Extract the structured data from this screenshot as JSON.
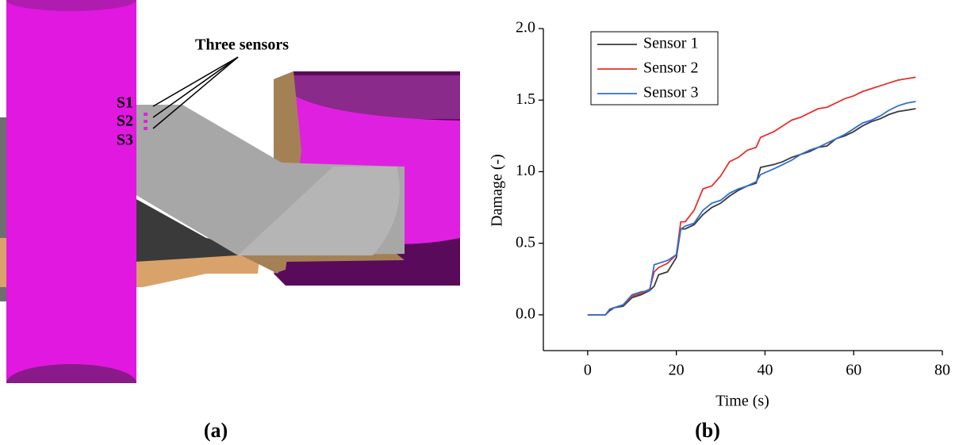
{
  "panel_a": {
    "annotation": "Three sensors",
    "sensor_labels": [
      "S1",
      "S2",
      "S3"
    ],
    "caption": "(a)"
  },
  "chart_data": {
    "type": "line",
    "caption": "(b)",
    "x_label": "Time (s)",
    "y_label": "Damage (-)",
    "x": [
      0,
      4,
      5,
      6,
      8,
      10,
      12,
      14,
      15,
      16,
      18,
      20,
      21,
      22,
      24,
      26,
      28,
      30,
      32,
      34,
      36,
      38,
      39,
      42,
      44,
      46,
      48,
      50,
      52,
      54,
      56,
      58,
      60,
      62,
      64,
      66,
      68,
      70,
      72,
      74
    ],
    "series": [
      {
        "name": "Sensor 1",
        "color": "#3a3a3a",
        "values": [
          0,
          0,
          0.03,
          0.05,
          0.06,
          0.12,
          0.14,
          0.17,
          0.2,
          0.28,
          0.3,
          0.4,
          0.6,
          0.6,
          0.63,
          0.7,
          0.75,
          0.78,
          0.83,
          0.87,
          0.9,
          0.92,
          1.03,
          1.05,
          1.07,
          1.1,
          1.12,
          1.14,
          1.17,
          1.18,
          1.23,
          1.25,
          1.28,
          1.32,
          1.35,
          1.37,
          1.4,
          1.42,
          1.43,
          1.44
        ]
      },
      {
        "name": "Sensor 2",
        "color": "#e8302c",
        "values": [
          0,
          0,
          0.04,
          0.05,
          0.07,
          0.13,
          0.15,
          0.18,
          0.3,
          0.33,
          0.36,
          0.42,
          0.65,
          0.65,
          0.73,
          0.88,
          0.9,
          0.97,
          1.07,
          1.1,
          1.15,
          1.17,
          1.24,
          1.28,
          1.32,
          1.36,
          1.38,
          1.41,
          1.44,
          1.45,
          1.48,
          1.51,
          1.53,
          1.56,
          1.58,
          1.6,
          1.62,
          1.64,
          1.65,
          1.66
        ]
      },
      {
        "name": "Sensor 3",
        "color": "#2f6fd6",
        "values": [
          0,
          0,
          0.04,
          0.05,
          0.07,
          0.14,
          0.16,
          0.17,
          0.35,
          0.36,
          0.38,
          0.42,
          0.6,
          0.62,
          0.64,
          0.73,
          0.78,
          0.8,
          0.85,
          0.88,
          0.9,
          0.93,
          0.98,
          1.02,
          1.05,
          1.08,
          1.12,
          1.15,
          1.17,
          1.2,
          1.23,
          1.26,
          1.3,
          1.34,
          1.36,
          1.39,
          1.43,
          1.46,
          1.48,
          1.49
        ]
      }
    ],
    "xlim": [
      -10,
      80
    ],
    "xticks": [
      0,
      20,
      40,
      60,
      80
    ],
    "ylim": [
      -0.25,
      2.0
    ],
    "yticks": [
      {
        "value": 0,
        "label": "0.0"
      },
      {
        "value": 0.5,
        "label": "0.5"
      },
      {
        "value": 1,
        "label": "1.0"
      },
      {
        "value": 1.5,
        "label": "1.5"
      },
      {
        "value": 2,
        "label": "2.0"
      }
    ],
    "grid": false,
    "legend": "upper-left"
  }
}
